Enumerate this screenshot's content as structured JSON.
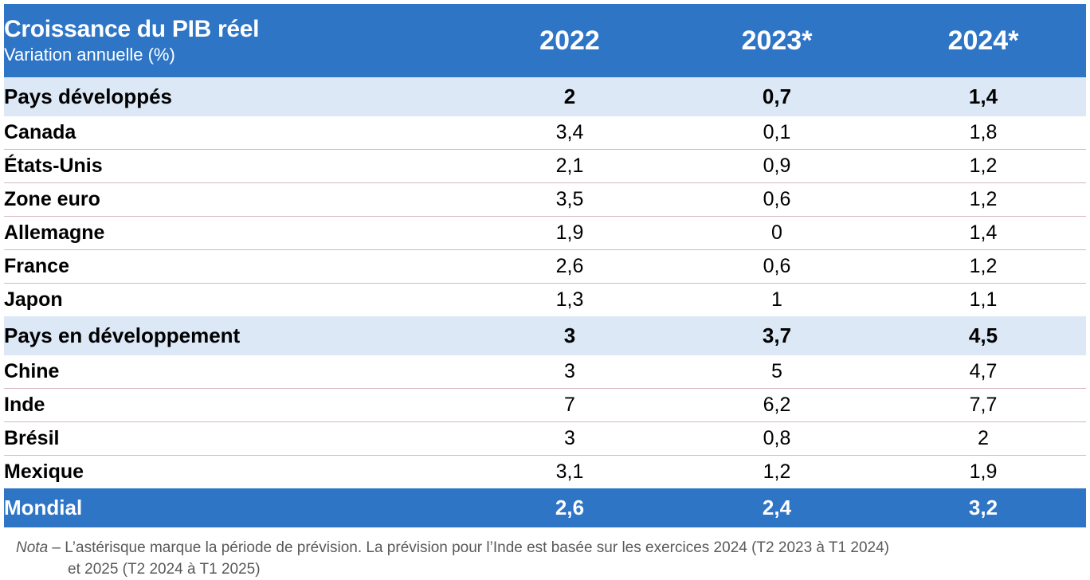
{
  "header": {
    "title": "Croissance du PIB réel",
    "subtitle": "Variation annuelle (%)",
    "years": [
      "2022",
      "2023*",
      "2024*"
    ]
  },
  "groups": {
    "developed": {
      "label": "Pays développés",
      "values": [
        "2",
        "0,7",
        "1,4"
      ]
    },
    "developing": {
      "label": "Pays en développement",
      "values": [
        "3",
        "3,7",
        "4,5"
      ]
    }
  },
  "developed_countries": [
    {
      "label": "Canada",
      "values": [
        "3,4",
        "0,1",
        "1,8"
      ]
    },
    {
      "label": "États-Unis",
      "values": [
        "2,1",
        "0,9",
        "1,2"
      ]
    },
    {
      "label": "Zone euro",
      "values": [
        "3,5",
        "0,6",
        "1,2"
      ]
    },
    {
      "label": "Allemagne",
      "values": [
        "1,9",
        "0",
        "1,4"
      ]
    },
    {
      "label": "France",
      "values": [
        "2,6",
        "0,6",
        "1,2"
      ]
    },
    {
      "label": "Japon",
      "values": [
        "1,3",
        "1",
        "1,1"
      ]
    }
  ],
  "developing_countries": [
    {
      "label": "Chine",
      "values": [
        "3",
        "5",
        "4,7"
      ]
    },
    {
      "label": "Inde",
      "values": [
        "7",
        "6,2",
        "7,7"
      ]
    },
    {
      "label": "Brésil",
      "values": [
        "3",
        "0,8",
        "2"
      ]
    },
    {
      "label": "Mexique",
      "values": [
        "3,1",
        "1,2",
        "1,9"
      ]
    }
  ],
  "world": {
    "label": "Mondial",
    "values": [
      "2,6",
      "2,4",
      "3,2"
    ]
  },
  "note": {
    "label": "Nota",
    "line1": " – L’astérisque marque la période de prévision. La prévision pour l’Inde est basée sur les exercices 2024 (T2 2023 à T1 2024)",
    "line2": "et 2025 (T2 2024 à T1 2025)"
  },
  "colors": {
    "header_bg": "#2e75c6",
    "group_bg": "#dce8f6",
    "row_border": "#d9b7c4"
  }
}
